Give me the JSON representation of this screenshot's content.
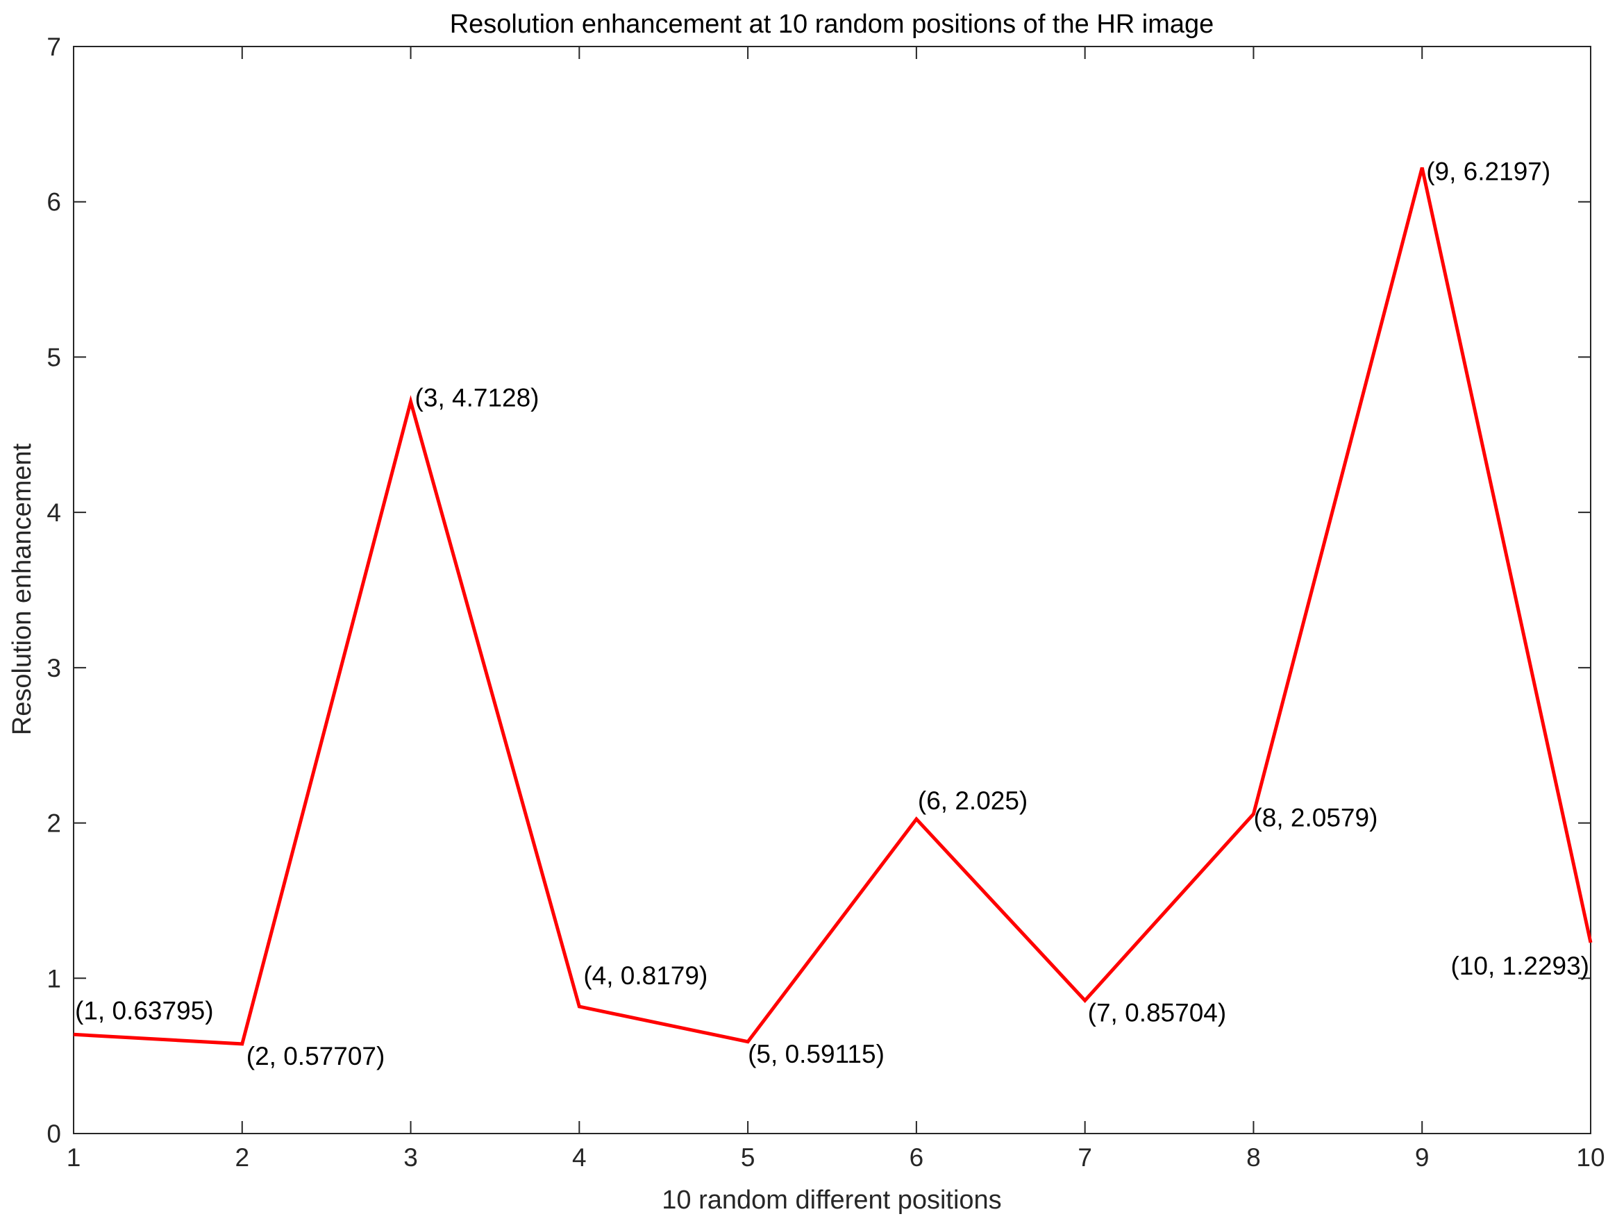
{
  "chart_data": {
    "type": "line",
    "title": "Resolution enhancement at 10 random positions of the HR image",
    "xlabel": "10 random different positions",
    "ylabel": "Resolution enhancement",
    "x": [
      1,
      2,
      3,
      4,
      5,
      6,
      7,
      8,
      9,
      10
    ],
    "series": [
      {
        "values": [
          0.63795,
          0.57707,
          4.7128,
          0.8179,
          0.59115,
          2.025,
          0.85704,
          2.0579,
          6.2197,
          1.2293
        ],
        "color": "#ff0000"
      }
    ],
    "xlim": [
      1,
      10
    ],
    "ylim": [
      0,
      7
    ],
    "xticks": [
      "1",
      "2",
      "3",
      "4",
      "5",
      "6",
      "7",
      "8",
      "9",
      "10"
    ],
    "yticks": [
      "0",
      "1",
      "2",
      "3",
      "4",
      "5",
      "6",
      "7"
    ],
    "data_labels": [
      "(1, 0.63795)",
      "(2, 0.57707)",
      "(3, 4.7128)",
      "(4, 0.8179)",
      "(5, 0.59115)",
      "(6, 2.025)",
      "(7, 0.85704)",
      "(8, 2.0579)",
      "(9, 6.2197)",
      "(10, 1.2293)"
    ],
    "grid": false,
    "box": true
  }
}
